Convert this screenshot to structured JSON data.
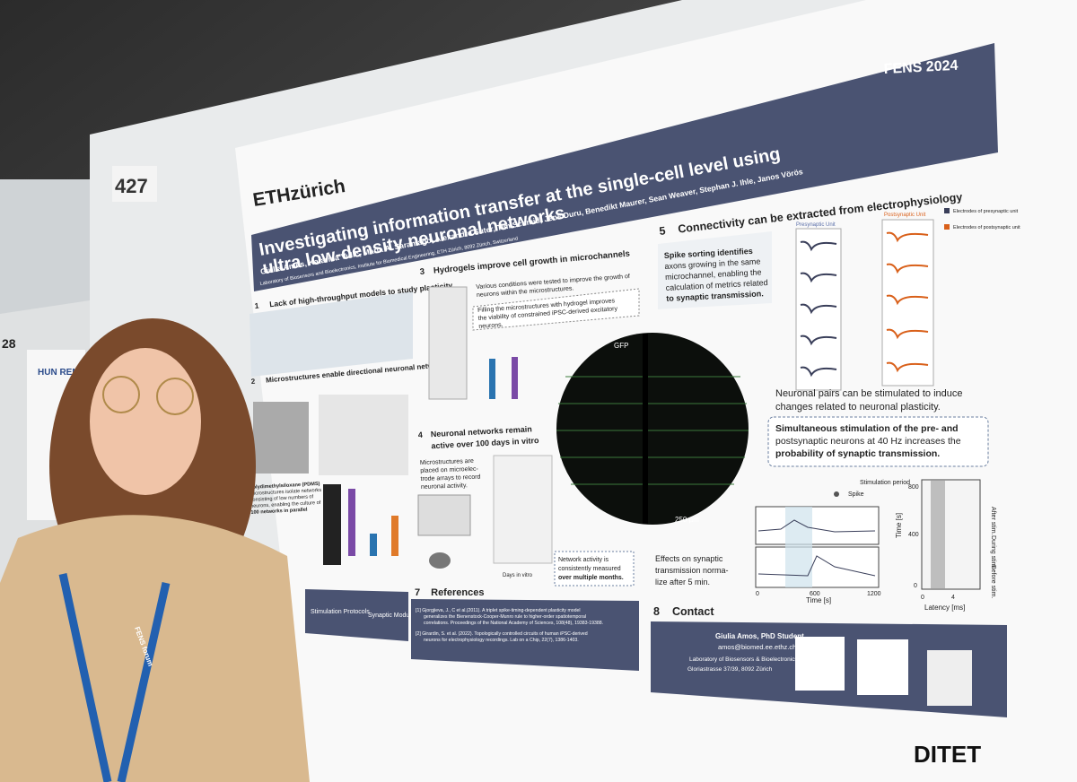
{
  "board_number": "427",
  "neighbor_board_number": "28",
  "neighbor_poster": {
    "logo": "HUN REN"
  },
  "badge": {
    "text": "FENS forum"
  },
  "poster": {
    "logo": "ETHzürich",
    "conference": "FENS 2024",
    "title": [
      "Investigating information transfer at the single-cell level using",
      "ultra low-density neuronal networks"
    ],
    "authors": "Giulia Amos, Katarina Vulić, Maria A. Saramago, Alexandre Suter, Tim Schmid, Jens Duru, Benedikt Maurer, Sean Weaver, Stephan J. Ihle, Janos Vörös",
    "affiliation": "Laboratory of Biosensors and Bioelectronics, Institute for Biomedical Engineering, ETH Zürich, 8092 Zürich, Switzerland",
    "sections": [
      {
        "number": "1",
        "title": "Lack of high-throughput models to study plasticity"
      },
      {
        "number": "2",
        "title": "Microstructures enable directional neuronal networks",
        "text": [
          "Polydimethylsiloxane (PDMS)",
          "microstructures isolate networks",
          "consisting of low numbers of",
          "neurons, enabling the culture of",
          "100 networks in parallel"
        ]
      },
      {
        "number": "3",
        "title": "Hydrogels improve cell growth in microchannels",
        "text": [
          "Various conditions were tested to improve the growth of",
          "neurons within the microstructures."
        ],
        "callout": [
          "Filling the microstructures with hydrogel improves",
          "the viability of constrained iPSC-derived excitatory",
          "neurons."
        ]
      },
      {
        "number": "4",
        "title": [
          "Neuronal networks remain",
          "active over 100 days in vitro"
        ],
        "text": [
          "Microstructures are",
          "placed on microelec-",
          "trode arrays to record",
          "neuronal activity."
        ],
        "callout": [
          "Network activity is",
          "consistently measured",
          "over multiple months."
        ],
        "x_label": "Days in vitro"
      },
      {
        "number": "5",
        "title": "Connectivity can be extracted from electrophysiology",
        "text": [
          "Spike sorting identifies",
          "axons growing in the same",
          "microchannel, enabling the",
          "calculation of metrics related",
          "to synaptic transmission."
        ],
        "presynaptic": "Presynaptic Unit",
        "postsynaptic": "Postsynaptic Unit",
        "legend": [
          "Electrodes of presynaptic unit",
          "Electrodes of postsynaptic unit"
        ],
        "stim_text": [
          "Neuronal pairs can be stimulated to induce",
          "changes related to neuronal plasticity."
        ],
        "callout": [
          "Simultaneous stimulation of the pre- and",
          "postsynaptic neurons at 40 Hz increases the",
          "probability of synaptic transmission."
        ],
        "effects": [
          "Effects on synaptic",
          "transmission norma-",
          "lize after 5 min."
        ],
        "fig_legend": [
          "Stimulation period",
          "Spike"
        ],
        "x_label_time": "Time [s]",
        "x_label_latency": "Latency [ms]",
        "y_label_time": "Time [s]",
        "time_ticks": [
          "0",
          "600",
          "1200"
        ],
        "raster_ticks": [
          "0",
          "400",
          "800"
        ],
        "latency_ticks": [
          "0",
          "4"
        ],
        "raster_labels": [
          "After stim.",
          "During stim.",
          "Before stim."
        ],
        "gfp": "GFP",
        "scale_bar": "250 µm"
      },
      {
        "number": "7",
        "title": "References",
        "items": [
          [
            "[1]  Gjorgjieva, J., C et al.(2011). A triplet spike-timing-dependent plasticity model",
            "generalizes the Bienenstock-Cooper-Munro rule to higher-order spatiotemporal",
            "correlations. Proceedings of the National Academy of Sciences, 108(48), 19383-19388."
          ],
          [
            "[2]  Girardin, S. et al. (2022). Topologically controlled circuits of human iPSC-derived",
            "neurons for electrophysiology recordings. Lab on a Chip, 22(7), 1386-1403."
          ]
        ]
      },
      {
        "number": "8",
        "title": "Contact",
        "name": "Giulia Amos, PhD Student",
        "email": "amos@biomed.ee.ethz.ch",
        "lab": "Laboratory of Biosensors & Bioelectronics",
        "address": "Gloriastrasse 37/39, 8092 Zürich"
      }
    ],
    "outlook": [
      "Stimulation Protocols",
      "Synaptic Modulation"
    ],
    "footer": "DITET"
  }
}
